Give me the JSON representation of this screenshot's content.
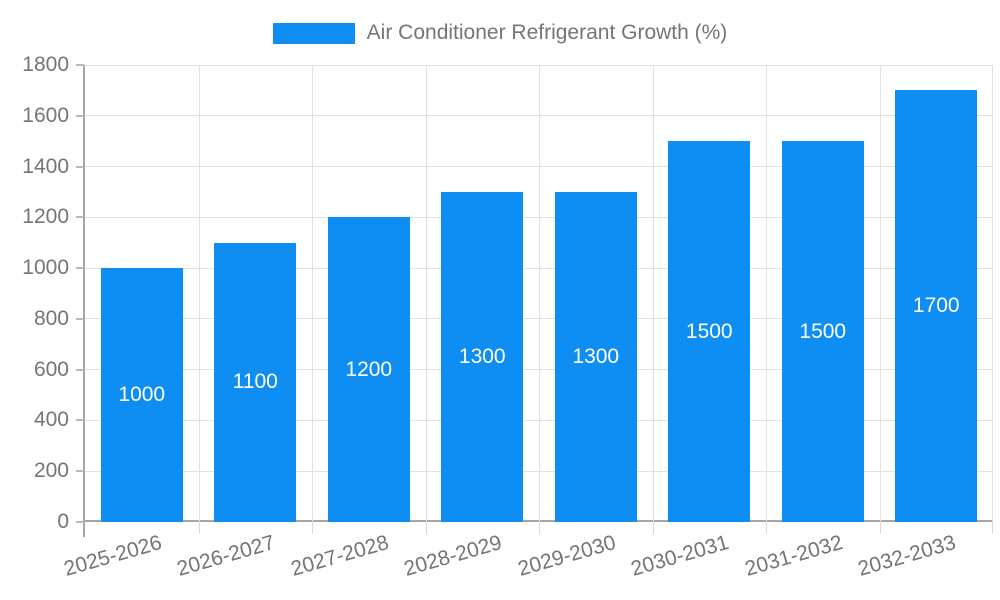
{
  "chart_data": {
    "type": "bar",
    "title": "",
    "legend": {
      "label": "Air Conditioner Refrigerant Growth (%)",
      "position": "top"
    },
    "categories": [
      "2025-2026",
      "2026-2027",
      "2027-2028",
      "2028-2029",
      "2029-2030",
      "2030-2031",
      "2031-2032",
      "2032-2033"
    ],
    "series": [
      {
        "name": "Air Conditioner Refrigerant Growth (%)",
        "values": [
          1000,
          1100,
          1200,
          1300,
          1300,
          1500,
          1500,
          1700
        ]
      }
    ],
    "bar_labels": [
      "1000",
      "1100",
      "1200",
      "1300",
      "1300",
      "1500",
      "1500",
      "1700"
    ],
    "xlabel": "",
    "ylabel": "",
    "ylim": [
      0,
      1800
    ],
    "yticks": [
      0,
      200,
      400,
      600,
      800,
      1000,
      1200,
      1400,
      1600,
      1800
    ],
    "grid": true,
    "x_tick_rotation_deg": -16,
    "colors": {
      "bar": "#0e8df2",
      "axis_text": "#757575",
      "grid_line": "#e2e2e2",
      "axis_line": "#a6a6a6",
      "bar_label": "#ffffff",
      "background": "#ffffff"
    }
  }
}
